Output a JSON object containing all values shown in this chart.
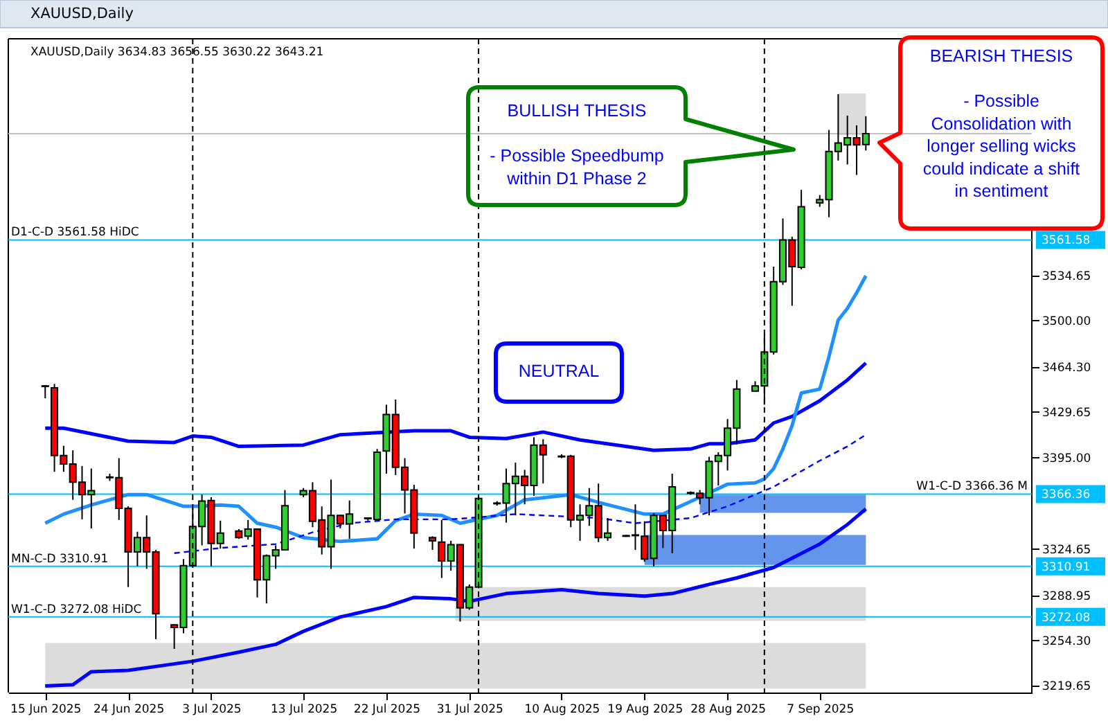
{
  "chart_data": {
    "type": "candlestick",
    "title": "XAUUSD,Daily",
    "subtitle": "XAUUSD,Daily 3634.83 3656.55 3630.22 3643.21",
    "x": [
      "2025-06-15",
      "2025-06-16",
      "2025-06-17",
      "2025-06-18",
      "2025-06-19",
      "2025-06-20",
      "2025-06-22",
      "2025-06-23",
      "2025-06-24",
      "2025-06-25",
      "2025-06-26",
      "2025-06-27",
      "2025-06-29",
      "2025-06-30",
      "2025-07-01",
      "2025-07-02",
      "2025-07-03",
      "2025-07-04",
      "2025-07-06",
      "2025-07-07",
      "2025-07-08",
      "2025-07-09",
      "2025-07-10",
      "2025-07-11",
      "2025-07-13",
      "2025-07-14",
      "2025-07-15",
      "2025-07-16",
      "2025-07-17",
      "2025-07-18",
      "2025-07-20",
      "2025-07-21",
      "2025-07-22",
      "2025-07-23",
      "2025-07-24",
      "2025-07-25",
      "2025-07-27",
      "2025-07-28",
      "2025-07-29",
      "2025-07-30",
      "2025-07-31",
      "2025-08-01",
      "2025-08-03",
      "2025-08-04",
      "2025-08-05",
      "2025-08-06",
      "2025-08-07",
      "2025-08-08",
      "2025-08-10",
      "2025-08-11",
      "2025-08-12",
      "2025-08-13",
      "2025-08-14",
      "2025-08-15",
      "2025-08-17",
      "2025-08-18",
      "2025-08-19",
      "2025-08-20",
      "2025-08-21",
      "2025-08-22",
      "2025-08-24",
      "2025-08-25",
      "2025-08-26",
      "2025-08-27",
      "2025-08-28",
      "2025-08-29",
      "2025-08-31",
      "2025-09-01",
      "2025-09-02",
      "2025-09-03",
      "2025-09-04",
      "2025-09-05",
      "2025-09-07",
      "2025-09-08",
      "2025-09-09",
      "2025-09-10",
      "2025-09-11",
      "2025-09-12"
    ],
    "ohlc": [
      [
        3449,
        3450,
        3440,
        3449.5
      ],
      [
        3448,
        3451,
        3383.5,
        3396
      ],
      [
        3396,
        3403.5,
        3383.5,
        3389.5
      ],
      [
        3389.5,
        3400,
        3362,
        3375.5
      ],
      [
        3375.5,
        3388,
        3347,
        3366
      ],
      [
        3366,
        3386,
        3340,
        3369
      ],
      [
        3379,
        3382,
        3376.5,
        3379.5
      ],
      [
        3379,
        3394,
        3346.5,
        3355.5
      ],
      [
        3355.5,
        3357,
        3295,
        3322
      ],
      [
        3322,
        3337.5,
        3311,
        3333
      ],
      [
        3333,
        3350,
        3309,
        3322
      ],
      [
        3322,
        3323.5,
        3255,
        3274.5
      ],
      [
        3266,
        3266.5,
        3247.5,
        3264
      ],
      [
        3264,
        3316.5,
        3259.5,
        3311.5
      ],
      [
        3311.5,
        3355.5,
        3311,
        3341.5
      ],
      [
        3341.5,
        3366,
        3327,
        3361
      ],
      [
        3361.5,
        3364,
        3311,
        3328.5
      ],
      [
        3328.5,
        3346,
        3324.5,
        3336.5
      ],
      [
        3338,
        3339.5,
        3332,
        3333
      ],
      [
        3334,
        3346.5,
        3331.5,
        3339.5
      ],
      [
        3339.5,
        3340,
        3287,
        3300.5
      ],
      [
        3300.5,
        3320,
        3282.5,
        3319
      ],
      [
        3319,
        3327,
        3309,
        3323.5
      ],
      [
        3323.5,
        3369.5,
        3323,
        3357.5
      ],
      [
        3366,
        3371,
        3364,
        3369
      ],
      [
        3369,
        3375.5,
        3341,
        3345.5
      ],
      [
        3346.5,
        3357,
        3320,
        3326
      ],
      [
        3326,
        3377.5,
        3309,
        3350
      ],
      [
        3350,
        3350.5,
        3340,
        3343.5
      ],
      [
        3343.5,
        3361.5,
        3332,
        3351
      ],
      [
        3347.5,
        3348.5,
        3346,
        3348
      ],
      [
        3347,
        3401,
        3346.5,
        3398.5
      ],
      [
        3399.5,
        3435,
        3382,
        3427.5
      ],
      [
        3427.5,
        3439,
        3381,
        3387
      ],
      [
        3387,
        3394,
        3351.5,
        3369.5
      ],
      [
        3369.5,
        3373.5,
        3324.5,
        3336.5
      ],
      [
        3333,
        3334,
        3323.5,
        3330.5
      ],
      [
        3329.5,
        3346.5,
        3302,
        3315
      ],
      [
        3315,
        3330.5,
        3307.5,
        3327.5
      ],
      [
        3327.5,
        3328,
        3268.5,
        3279
      ],
      [
        3279,
        3297,
        3277.5,
        3295
      ],
      [
        3295,
        3364,
        3294,
        3363
      ],
      [
        3359,
        3361,
        3357.5,
        3359.5
      ],
      [
        3359.5,
        3386,
        3344.5,
        3374.5
      ],
      [
        3374.5,
        3390.5,
        3350,
        3380
      ],
      [
        3380,
        3385,
        3358.5,
        3373
      ],
      [
        3373,
        3410,
        3365,
        3404
      ],
      [
        3404,
        3408.5,
        3374.5,
        3396.5
      ],
      [
        3395.5,
        3397,
        3394,
        3395
      ],
      [
        3395.5,
        3396.5,
        3341,
        3346.5
      ],
      [
        3346.5,
        3358.5,
        3330.5,
        3350
      ],
      [
        3350,
        3371,
        3342,
        3357.5
      ],
      [
        3357.5,
        3374.5,
        3329.5,
        3333
      ],
      [
        3333,
        3348,
        3330.5,
        3336.5
      ],
      [
        3334,
        3335,
        3333.5,
        3334.5
      ],
      [
        3334.5,
        3358.5,
        3323.5,
        3335
      ],
      [
        3334,
        3345.5,
        3314.5,
        3316.5
      ],
      [
        3317,
        3351.5,
        3311,
        3350
      ],
      [
        3350,
        3350.5,
        3325,
        3338.5
      ],
      [
        3338.5,
        3382,
        3321,
        3372
      ],
      [
        3367,
        3368.5,
        3366,
        3367.5
      ],
      [
        3367,
        3369.5,
        3358.5,
        3363.5
      ],
      [
        3363.5,
        3395,
        3350,
        3391.5
      ],
      [
        3391.5,
        3398.5,
        3373,
        3396
      ],
      [
        3396,
        3424,
        3384.5,
        3417
      ],
      [
        3417,
        3454,
        3404.5,
        3447
      ],
      [
        3445.5,
        3453,
        3445,
        3449.5
      ],
      [
        3449.5,
        3489.5,
        3435,
        3475.5
      ],
      [
        3475.5,
        3541,
        3473.5,
        3529.5
      ],
      [
        3529.5,
        3578,
        3527,
        3561.5
      ],
      [
        3561.5,
        3564,
        3511,
        3541
      ],
      [
        3540.5,
        3600,
        3539,
        3587
      ],
      [
        3590,
        3596,
        3587,
        3592.5
      ],
      [
        3592.5,
        3646,
        3579,
        3629.5
      ],
      [
        3629.5,
        3673.5,
        3622.5,
        3636
      ],
      [
        3634.5,
        3657,
        3619.5,
        3640
      ],
      [
        3640,
        3649.5,
        3611.5,
        3634.5
      ],
      [
        3634.83,
        3656.55,
        3630.22,
        3643.21
      ]
    ],
    "colors": [
      "#32cd32",
      "#ff0000",
      "#ff0000",
      "#ff0000",
      "#ff0000",
      "#32cd32",
      "#32cd32",
      "#ff0000",
      "#ff0000",
      "#32cd32",
      "#ff0000",
      "#ff0000",
      "#ff0000",
      "#32cd32",
      "#32cd32",
      "#32cd32",
      "#ff0000",
      "#32cd32",
      "#ff0000",
      "#32cd32",
      "#ff0000",
      "#32cd32",
      "#32cd32",
      "#32cd32",
      "#32cd32",
      "#ff0000",
      "#ff0000",
      "#32cd32",
      "#ff0000",
      "#32cd32",
      "#32cd32",
      "#32cd32",
      "#32cd32",
      "#ff0000",
      "#ff0000",
      "#ff0000",
      "#ff0000",
      "#ff0000",
      "#32cd32",
      "#ff0000",
      "#32cd32",
      "#32cd32",
      "#32cd32",
      "#32cd32",
      "#32cd32",
      "#ff0000",
      "#32cd32",
      "#ff0000",
      "#ff0000",
      "#ff0000",
      "#32cd32",
      "#32cd32",
      "#ff0000",
      "#32cd32",
      "#32cd32",
      "#32cd32",
      "#ff0000",
      "#32cd32",
      "#ff0000",
      "#32cd32",
      "#32cd32",
      "#ff0000",
      "#32cd32",
      "#32cd32",
      "#32cd32",
      "#32cd32",
      "#32cd32",
      "#32cd32",
      "#32cd32",
      "#32cd32",
      "#ff0000",
      "#32cd32",
      "#32cd32",
      "#32cd32",
      "#32cd32",
      "#32cd32",
      "#ff0000",
      "#32cd32"
    ],
    "series": [
      {
        "type": "line",
        "color": "#dcdcdc",
        "x": [
          "2025-06-15",
          "2025-09-12"
        ],
        "values": [
          null,
          null
        ],
        "upper": [
          3252,
          3252
        ],
        "lower": [
          3217,
          3217
        ]
      },
      {
        "type": "line",
        "color": "#dcdcdc",
        "x": [
          "2025-07-29T12:00",
          "2025-09-12"
        ],
        "values": [
          null,
          null
        ],
        "upper": [
          3295,
          3295
        ],
        "lower": [
          3269,
          3269
        ]
      },
      {
        "type": "line",
        "color": "#6495ed",
        "x": [
          "2025-08-25",
          "2025-09-12"
        ],
        "values": [
          null,
          null
        ],
        "upper": [
          3366,
          3366
        ],
        "lower": [
          3352,
          3352
        ]
      },
      {
        "type": "line",
        "color": "#6495ed",
        "x": [
          "2025-08-19",
          "2025-09-12"
        ],
        "values": [
          null,
          null
        ],
        "upper": [
          3335,
          3335
        ],
        "lower": [
          3312,
          3312
        ]
      },
      {
        "type": "line",
        "color": "#dcdcdc",
        "x": [
          "2025-09-09",
          "2025-09-12"
        ],
        "values": [
          null,
          null
        ],
        "upper": [
          3674,
          3674
        ],
        "lower": [
          3642,
          3642
        ]
      },
      {
        "type": "line",
        "color": "#0000ff",
        "x": [
          "2025-06-15",
          "2025-06-17",
          "2025-06-24",
          "2025-06-29",
          "2025-07-01",
          "2025-07-03",
          "2025-07-06",
          "2025-07-13",
          "2025-07-17",
          "2025-07-25",
          "2025-07-29",
          "2025-07-31",
          "2025-08-04",
          "2025-08-08",
          "2025-08-12",
          "2025-08-20",
          "2025-08-24",
          "2025-08-26",
          "2025-08-28",
          "2025-08-31",
          "2025-09-02",
          "2025-09-04",
          "2025-09-07",
          "2025-09-10",
          "2025-09-12"
        ],
        "values": [
          3417,
          3417,
          3407,
          3406,
          3411,
          3410,
          3403,
          3404,
          3412,
          3415,
          3415,
          3410,
          3409,
          3414,
          3408,
          3400,
          3401,
          3405,
          3405,
          3408,
          3421,
          3426,
          3438,
          3454,
          3467
        ]
      },
      {
        "type": "line",
        "color": "#0000ff",
        "x": [
          "2025-06-15",
          "2025-06-18",
          "2025-06-20",
          "2025-06-24",
          "2025-06-29",
          "2025-07-01",
          "2025-07-06",
          "2025-07-10",
          "2025-07-13",
          "2025-07-17",
          "2025-07-22",
          "2025-07-25",
          "2025-07-29",
          "2025-07-31",
          "2025-08-04",
          "2025-08-10",
          "2025-08-14",
          "2025-08-19",
          "2025-08-22",
          "2025-08-26",
          "2025-08-29",
          "2025-09-02",
          "2025-09-07",
          "2025-09-10",
          "2025-09-12"
        ],
        "values": [
          3219,
          3220,
          3230,
          3231,
          3236,
          3238,
          3245,
          3251,
          3261,
          3272,
          3280,
          3287,
          3286,
          3284,
          3290,
          3293,
          3290,
          3288,
          3290,
          3297,
          3302,
          3310,
          3328,
          3343,
          3355
        ]
      },
      {
        "type": "line",
        "color": "#1e90ff",
        "x": [
          "2025-06-15",
          "2025-06-17",
          "2025-06-20",
          "2025-06-24",
          "2025-06-26",
          "2025-06-30",
          "2025-07-02",
          "2025-07-04",
          "2025-07-06",
          "2025-07-08",
          "2025-07-10",
          "2025-07-13",
          "2025-07-17",
          "2025-07-21",
          "2025-07-23",
          "2025-07-25",
          "2025-07-28",
          "2025-07-30",
          "2025-08-03",
          "2025-08-06",
          "2025-08-11",
          "2025-08-14",
          "2025-08-19",
          "2025-08-21",
          "2025-08-25",
          "2025-08-28",
          "2025-08-31",
          "2025-09-01",
          "2025-09-02",
          "2025-09-03",
          "2025-09-04",
          "2025-09-05",
          "2025-09-07",
          "2025-09-08",
          "2025-09-09",
          "2025-09-10",
          "2025-09-11",
          "2025-09-12"
        ],
        "values": [
          3344,
          3351,
          3358,
          3366,
          3366,
          3357,
          3357,
          3358,
          3357,
          3344,
          3341,
          3333,
          3330,
          3332,
          3346,
          3351,
          3350,
          3344,
          3350,
          3362,
          3366,
          3360,
          3351,
          3351,
          3364,
          3374,
          3375,
          3378,
          3386,
          3401,
          3419,
          3444,
          3447,
          3472,
          3500,
          3509,
          3521,
          3534
        ]
      },
      {
        "type": "line",
        "color": "#0000ff",
        "line_style": "dashed",
        "x": [
          "2025-06-29",
          "2025-07-04",
          "2025-07-10",
          "2025-07-14",
          "2025-07-18",
          "2025-07-23",
          "2025-07-29",
          "2025-07-31",
          "2025-08-05",
          "2025-08-14",
          "2025-08-18",
          "2025-08-24",
          "2025-08-28",
          "2025-09-02",
          "2025-09-07",
          "2025-09-10",
          "2025-09-12"
        ],
        "values": [
          3321,
          3325,
          3328,
          3337,
          3344,
          3347,
          3347,
          3348,
          3351,
          3348,
          3344,
          3348,
          3357,
          3372,
          3392,
          3403,
          3412
        ]
      }
    ],
    "xlim": [
      "2025-06-11",
      "2025-09-30"
    ],
    "ylim": [
      3214,
      3716
    ],
    "yticks": [
      {
        "value": 3219.65,
        "label": "3219.65"
      },
      {
        "value": 3254.3,
        "label": "3254.30"
      },
      {
        "value": 3272.08,
        "label": "3272.08"
      },
      {
        "value": 3288.95,
        "label": "3288.95"
      },
      {
        "value": 3310.91,
        "label": "3310.91"
      },
      {
        "value": 3324.65,
        "label": "3324.65"
      },
      {
        "value": 3366.36,
        "label": "3366.36"
      },
      {
        "value": 3395,
        "label": "3395.00"
      },
      {
        "value": 3429.65,
        "label": "3429.65"
      },
      {
        "value": 3464.3,
        "label": "3464.30"
      },
      {
        "value": 3500,
        "label": "3500.00"
      },
      {
        "value": 3534.65,
        "label": "3534.65"
      },
      {
        "value": 3561.58,
        "label": "3561.58"
      }
    ],
    "xticks": [
      {
        "value": "2025-06-15",
        "label": "15 Jun 2025"
      },
      {
        "value": "2025-06-24",
        "label": "24 Jun 2025"
      },
      {
        "value": "2025-07-03",
        "label": "3 Jul 2025"
      },
      {
        "value": "2025-07-13",
        "label": "13 Jul 2025"
      },
      {
        "value": "2025-07-22",
        "label": "22 Jul 2025"
      },
      {
        "value": "2025-07-31",
        "label": "31 Jul 2025"
      },
      {
        "value": "2025-08-10",
        "label": "10 Aug 2025"
      },
      {
        "value": "2025-08-19",
        "label": "19 Aug 2025"
      },
      {
        "value": "2025-08-28",
        "label": "28 Aug 2025"
      },
      {
        "value": "2025-09-07",
        "label": "7 Sep 2025"
      }
    ],
    "ref_lines": [
      {
        "axis": "y",
        "value": 3561.58,
        "label": "D1-C-D 3561.58 HiDC",
        "color": "#00bfff"
      },
      {
        "axis": "y",
        "value": 3366.36,
        "label": "W1-C-D 3366.36 M",
        "color": "#00bfff"
      },
      {
        "axis": "y",
        "value": 3310.91,
        "label": "MN-C-D 3310.91",
        "color": "#00bfff"
      },
      {
        "axis": "y",
        "value": 3272.08,
        "label": "W1-C-D 3272.08 HiDC",
        "color": "#00bfff"
      },
      {
        "axis": "y",
        "value": 3643.21,
        "color": "#c0c0c0"
      },
      {
        "axis": "x",
        "value": "2025-07-01",
        "color": "#000000",
        "line_style": "dashed"
      },
      {
        "axis": "x",
        "value": "2025-08-01",
        "color": "#000000",
        "line_style": "dashed"
      },
      {
        "axis": "x",
        "value": "2025-09-01",
        "color": "#000000",
        "line_style": "dashed"
      }
    ],
    "annotations": [
      "BULLISH THESIS\n\n- Possible Speedbump\nwithin D1 Phase 2",
      "BEARISH THESIS\n\n- Possible\nConsolidation with\nlonger selling wicks\ncould indicate a shift\nin sentiment",
      "NEUTRAL"
    ]
  }
}
